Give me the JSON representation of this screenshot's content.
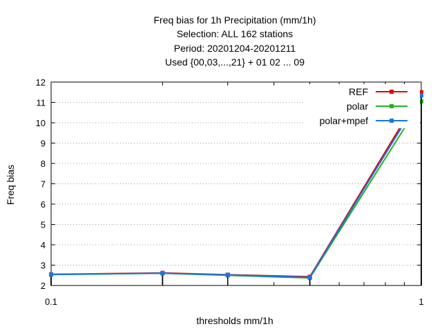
{
  "chart_data": {
    "type": "line",
    "title": "Freq bias  for 1h Precipitation (mm/1h)",
    "subtitle_lines": [
      "Selection: ALL    162 stations",
      "Period: 20201204-20201211",
      "Used {00,03,...,21} + 01 02 ... 09"
    ],
    "xlabel": "thresholds mm/1h",
    "ylabel": "Freq bias",
    "x_scale": "log",
    "xlim": [
      0.1,
      1
    ],
    "ylim": [
      2,
      12
    ],
    "x_ticks": [
      0.1,
      1
    ],
    "x_tick_labels": [
      "0.1",
      "1"
    ],
    "y_ticks": [
      2,
      3,
      4,
      5,
      6,
      7,
      8,
      9,
      10,
      11,
      12
    ],
    "y_tick_labels": [
      "2",
      "3",
      "4",
      "5",
      "6",
      "7",
      "8",
      "9",
      "10",
      "11",
      "12"
    ],
    "grid": "dotted horizontal",
    "legend_position": "top-right",
    "series": [
      {
        "name": "REF",
        "color": "#e8000b",
        "x": [
          0.1,
          0.2,
          0.3,
          0.5,
          1.0
        ],
        "y": [
          2.55,
          2.62,
          2.53,
          2.43,
          11.5
        ]
      },
      {
        "name": "polar",
        "color": "#22b222",
        "x": [
          0.1,
          0.2,
          0.3,
          0.5,
          1.0
        ],
        "y": [
          2.54,
          2.6,
          2.5,
          2.37,
          11.05
        ]
      },
      {
        "name": "polar+mpef",
        "color": "#1a75e0",
        "x": [
          0.1,
          0.2,
          0.3,
          0.5,
          1.0
        ],
        "y": [
          2.54,
          2.6,
          2.52,
          2.4,
          11.35
        ]
      }
    ]
  }
}
